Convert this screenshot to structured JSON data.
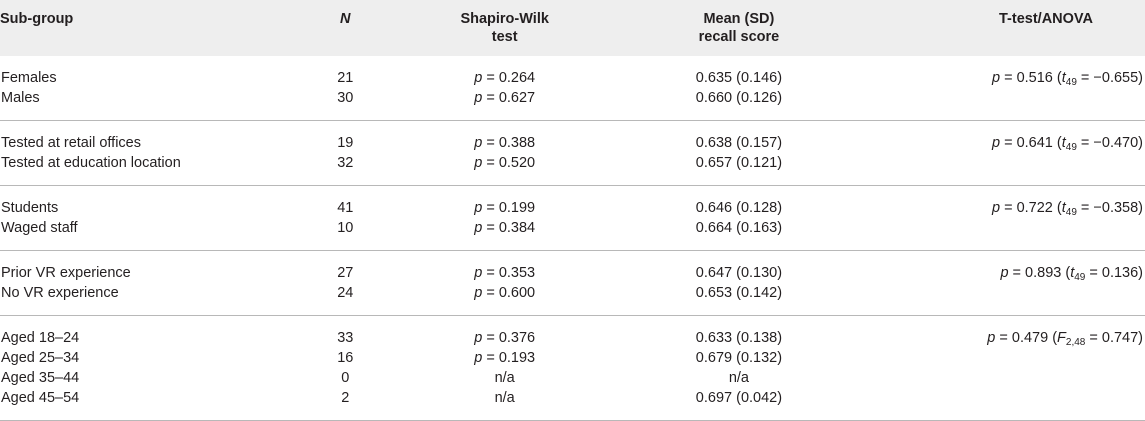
{
  "headers": {
    "subgroup": "Sub-group",
    "n": "N",
    "sw_line1": "Shapiro-Wilk",
    "sw_line2": "test",
    "mean_line1": "Mean (SD)",
    "mean_line2": "recall score",
    "test": "T-test/ANOVA"
  },
  "rows": [
    {
      "label": "Females",
      "n": "21",
      "p": "0.264",
      "mean": "0.635 (0.146)",
      "test_p": "0.516",
      "stat_sym": "t",
      "stat_sub": "49",
      "stat_val": "−0.655"
    },
    {
      "label": "Males",
      "n": "30",
      "p": "0.627",
      "mean": "0.660 (0.126)"
    },
    {
      "label": "Tested at retail offices",
      "n": "19",
      "p": "0.388",
      "mean": "0.638 (0.157)",
      "test_p": "0.641",
      "stat_sym": "t",
      "stat_sub": "49",
      "stat_val": "−0.470"
    },
    {
      "label": "Tested at education location",
      "n": "32",
      "p": "0.520",
      "mean": "0.657 (0.121)"
    },
    {
      "label": "Students",
      "n": "41",
      "p": "0.199",
      "mean": "0.646 (0.128)",
      "test_p": "0.722",
      "stat_sym": "t",
      "stat_sub": "49",
      "stat_val": "−0.358"
    },
    {
      "label": "Waged staff",
      "n": "10",
      "p": "0.384",
      "mean": "0.664 (0.163)"
    },
    {
      "label": "Prior VR experience",
      "n": "27",
      "p": "0.353",
      "mean": "0.647 (0.130)",
      "test_p": "0.893",
      "stat_sym": "t",
      "stat_sub": "49",
      "stat_val": "0.136"
    },
    {
      "label": "No VR experience",
      "n": "24",
      "p": "0.600",
      "mean": "0.653 (0.142)"
    },
    {
      "label": "Aged 18–24",
      "n": "33",
      "p": "0.376",
      "mean": "0.633 (0.138)",
      "test_p": "0.479",
      "stat_sym": "F",
      "stat_sub": "2,48",
      "stat_val": "0.747"
    },
    {
      "label": "Aged 25–34",
      "n": "16",
      "p": "0.193",
      "mean": "0.679 (0.132)"
    },
    {
      "label": "Aged 35–44",
      "n": "0",
      "p_text": "n/a",
      "mean": "n/a"
    },
    {
      "label": "Aged 45–54",
      "n": "2",
      "p_text": "n/a",
      "mean": "0.697 (0.042)"
    }
  ],
  "symbols": {
    "p": "p",
    "eq": " = "
  }
}
